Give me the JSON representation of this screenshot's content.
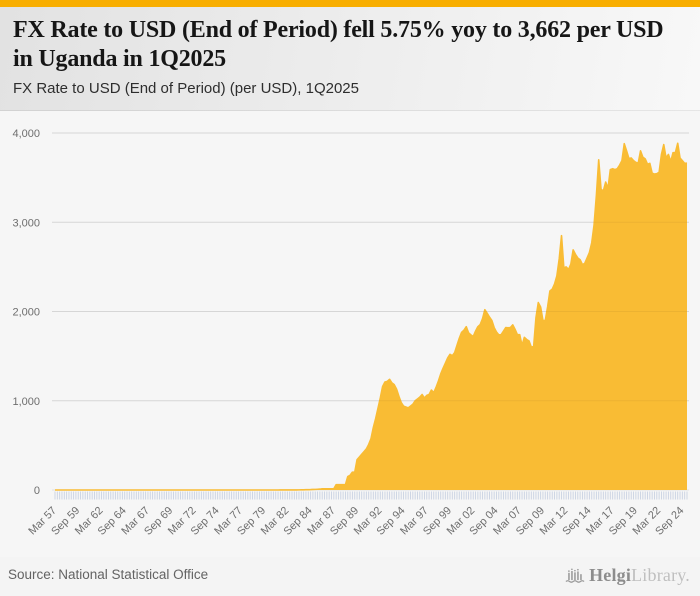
{
  "header": {
    "title": "FX Rate to USD (End of Period) fell 5.75% yoy to 3,662 per USD in Uganda in 1Q2025",
    "subtitle": "FX Rate to USD (End of Period) (per USD), 1Q2025"
  },
  "footer": {
    "source": "Source: National Statistical Office",
    "logo_name": "Helgi",
    "logo_suffix": "Library."
  },
  "colors": {
    "accent_bar": "#f8ae00",
    "area_fill": "#f9bc34",
    "gridline": "#e2e2e2",
    "quarter_tick": "#c9d2e2",
    "axis_text": "#6e6e6e"
  },
  "chart_data": {
    "type": "area",
    "title": "FX Rate to USD (End of Period) (per USD), 1Q2025",
    "xlabel": "",
    "ylabel": "",
    "ylim": [
      0,
      4000
    ],
    "grid": true,
    "legend": false,
    "frequency": "quarterly",
    "period_start": "Mar 1957",
    "period_end": "Mar 2025",
    "latest_value": 3662,
    "yoy_change_pct": -5.75,
    "y_tick_labels": [
      "0",
      "1,000",
      "2,000",
      "3,000",
      "4,000"
    ],
    "x_tick_every": 10,
    "x_tick_labels": [
      "Mar 57",
      "Sep 59",
      "Mar 62",
      "Sep 64",
      "Mar 67",
      "Sep 69",
      "Mar 72",
      "Sep 74",
      "Mar 77",
      "Sep 79",
      "Mar 82",
      "Sep 84",
      "Mar 87",
      "Sep 89",
      "Mar 92",
      "Sep 94",
      "Mar 97",
      "Sep 99",
      "Mar 02",
      "Sep 04",
      "Mar 07",
      "Sep 09",
      "Mar 12",
      "Sep 14",
      "Mar 17",
      "Sep 19",
      "Mar 22",
      "Sep 24"
    ],
    "values": [
      0.07,
      0.07,
      0.07,
      0.07,
      0.07,
      0.07,
      0.07,
      0.07,
      0.07,
      0.07,
      0.07,
      0.07,
      0.07,
      0.07,
      0.07,
      0.07,
      0.07,
      0.07,
      0.07,
      0.07,
      0.07,
      0.07,
      0.07,
      0.07,
      0.07,
      0.07,
      0.07,
      0.07,
      0.07,
      0.07,
      0.07,
      0.07,
      0.07,
      0.07,
      0.07,
      0.07,
      0.07,
      0.07,
      0.07,
      0.07,
      0.07,
      0.07,
      0.07,
      0.07,
      0.07,
      0.07,
      0.07,
      0.07,
      0.07,
      0.07,
      0.07,
      0.07,
      0.07,
      0.07,
      0.07,
      0.07,
      0.07,
      0.07,
      0.07,
      0.07,
      0.07,
      0.07,
      0.07,
      0.07,
      0.07,
      0.07,
      0.07,
      0.07,
      0.07,
      0.07,
      0.07,
      0.07,
      0.08,
      0.08,
      0.08,
      0.08,
      0.08,
      0.08,
      0.08,
      0.08,
      0.08,
      0.08,
      0.08,
      0.08,
      0.08,
      0.08,
      0.08,
      0.08,
      0.08,
      0.08,
      0.08,
      0.08,
      0.08,
      0.08,
      0.08,
      0.08,
      0.08,
      0.78,
      0.78,
      0.85,
      0.9,
      0.95,
      0.98,
      1,
      1.2,
      1.5,
      2,
      2.4,
      3,
      3.6,
      4.5,
      6,
      7,
      8.5,
      10,
      14,
      14,
      14,
      14,
      14,
      14,
      60,
      60,
      60,
      60,
      60,
      150,
      165,
      200,
      200,
      340,
      370,
      400,
      430,
      460,
      510,
      575,
      700,
      800,
      915,
      1030,
      1160,
      1210,
      1217,
      1240,
      1200,
      1180,
      1130,
      1050,
      980,
      940,
      930,
      920,
      940,
      960,
      1000,
      1020,
      1040,
      1070,
      1030,
      1060,
      1070,
      1120,
      1090,
      1150,
      1220,
      1300,
      1363,
      1420,
      1480,
      1520,
      1505,
      1540,
      1620,
      1700,
      1767,
      1790,
      1830,
      1760,
      1738,
      1720,
      1780,
      1830,
      1854,
      1920,
      2020,
      1980,
      1937,
      1900,
      1820,
      1770,
      1738,
      1740,
      1780,
      1820,
      1817,
      1820,
      1850,
      1800,
      1740,
      1740,
      1620,
      1710,
      1686,
      1670,
      1600,
      1610,
      1932,
      2100,
      2050,
      1900,
      1897,
      2050,
      2230,
      2250,
      2308,
      2400,
      2590,
      2850,
      2488,
      2500,
      2470,
      2530,
      2690,
      2640,
      2600,
      2580,
      2525,
      2540,
      2600,
      2660,
      2770,
      2970,
      3300,
      3700,
      3370,
      3350,
      3450,
      3380,
      3590,
      3600,
      3590,
      3600,
      3640,
      3690,
      3880,
      3800,
      3715,
      3720,
      3690,
      3670,
      3662,
      3800,
      3730,
      3710,
      3650,
      3660,
      3550,
      3540,
      3544,
      3560,
      3760,
      3870,
      3720,
      3760,
      3680,
      3780,
      3780,
      3885,
      3720,
      3690,
      3660,
      3662
    ]
  }
}
